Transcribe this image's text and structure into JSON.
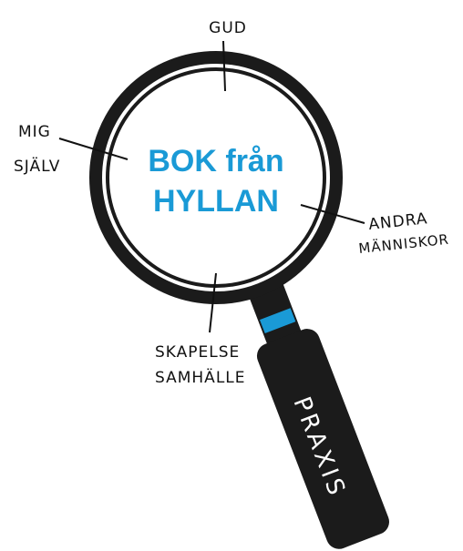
{
  "center": {
    "lines": [
      "BOK från",
      "HYLLAN"
    ]
  },
  "labels": [
    {
      "lines": [
        "GUD"
      ]
    },
    {
      "lines": [
        "MIG",
        "SJÄLV"
      ]
    },
    {
      "lines": [
        "ANDRA",
        "MÄNNISKOR"
      ]
    },
    {
      "lines": [
        "SKAPELSE",
        "SAMHÄLLE"
      ]
    }
  ],
  "handle": {
    "label": "PRAXIS"
  }
}
